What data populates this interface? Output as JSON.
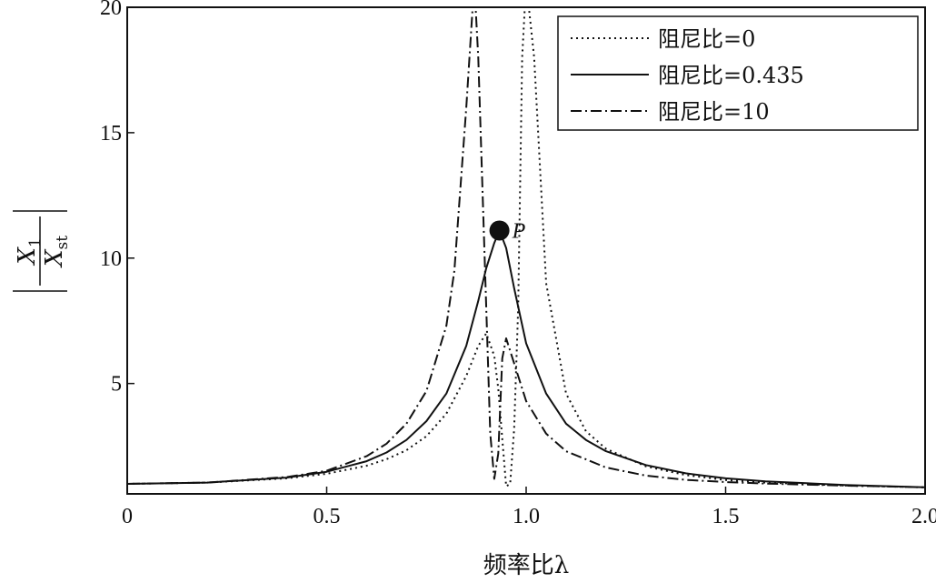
{
  "chart_data": {
    "type": "line",
    "xlabel": "频率比λ",
    "ylabel": "X1/Xst",
    "ylabel_parts": {
      "num_main": "X",
      "num_sub": "1",
      "den_main": "X",
      "den_sub": "st"
    },
    "xlim": [
      0,
      2
    ],
    "ylim": [
      0.6,
      20
    ],
    "xticks": [
      0,
      0.5,
      1.0,
      1.5,
      2.0
    ],
    "xtick_labels": [
      "0",
      "0.5",
      "1.0",
      "1.5",
      "2.0"
    ],
    "yticks": [
      5,
      10,
      15,
      20
    ],
    "ytick_labels": [
      "5",
      "10",
      "15",
      "20"
    ],
    "legend_position": "top-right",
    "annotation": {
      "label": "P",
      "x": 0.933,
      "y": 11.1
    },
    "series": [
      {
        "name": "阻尼比=0",
        "style": "dotted",
        "x": [
          0,
          0.2,
          0.4,
          0.5,
          0.6,
          0.65,
          0.7,
          0.75,
          0.8,
          0.85,
          0.88,
          0.9,
          0.92,
          0.93,
          0.94,
          0.95,
          0.96,
          0.97,
          0.98,
          0.99,
          1.0,
          1.02,
          1.05,
          1.1,
          1.15,
          1.2,
          1.3,
          1.4,
          1.5,
          1.6,
          1.8,
          2.0
        ],
        "y": [
          1.0,
          1.05,
          1.22,
          1.4,
          1.72,
          1.98,
          2.34,
          2.9,
          3.8,
          5.3,
          6.5,
          7.0,
          6.1,
          4.8,
          2.8,
          0.9,
          1.0,
          3.2,
          8.0,
          18.0,
          21.0,
          18.0,
          9.0,
          4.6,
          3.1,
          2.4,
          1.7,
          1.35,
          1.15,
          1.05,
          0.93,
          0.86
        ]
      },
      {
        "name": "阻尼比=0.435",
        "style": "solid",
        "x": [
          0,
          0.2,
          0.4,
          0.5,
          0.6,
          0.65,
          0.7,
          0.75,
          0.8,
          0.85,
          0.88,
          0.9,
          0.92,
          0.933,
          0.95,
          0.97,
          1.0,
          1.05,
          1.1,
          1.15,
          1.2,
          1.3,
          1.4,
          1.5,
          1.6,
          1.8,
          2.0
        ],
        "y": [
          1.0,
          1.05,
          1.25,
          1.48,
          1.9,
          2.25,
          2.75,
          3.5,
          4.6,
          6.5,
          8.3,
          9.6,
          10.6,
          11.1,
          10.4,
          8.8,
          6.6,
          4.6,
          3.4,
          2.75,
          2.3,
          1.75,
          1.42,
          1.22,
          1.1,
          0.95,
          0.86
        ]
      },
      {
        "name": "阻尼比=10",
        "style": "dashdot",
        "x": [
          0,
          0.2,
          0.4,
          0.5,
          0.6,
          0.65,
          0.7,
          0.75,
          0.8,
          0.82,
          0.85,
          0.87,
          0.88,
          0.9,
          0.91,
          0.92,
          0.93,
          0.94,
          0.95,
          0.97,
          1.0,
          1.05,
          1.1,
          1.2,
          1.3,
          1.4,
          1.5,
          1.6,
          1.8,
          2.0
        ],
        "y": [
          1.0,
          1.05,
          1.27,
          1.52,
          2.1,
          2.6,
          3.4,
          4.7,
          7.3,
          9.5,
          16.0,
          21.0,
          18.0,
          8.0,
          3.0,
          1.2,
          2.2,
          6.0,
          6.8,
          5.8,
          4.3,
          3.0,
          2.3,
          1.65,
          1.33,
          1.16,
          1.07,
          1.01,
          0.93,
          0.86
        ]
      }
    ]
  }
}
